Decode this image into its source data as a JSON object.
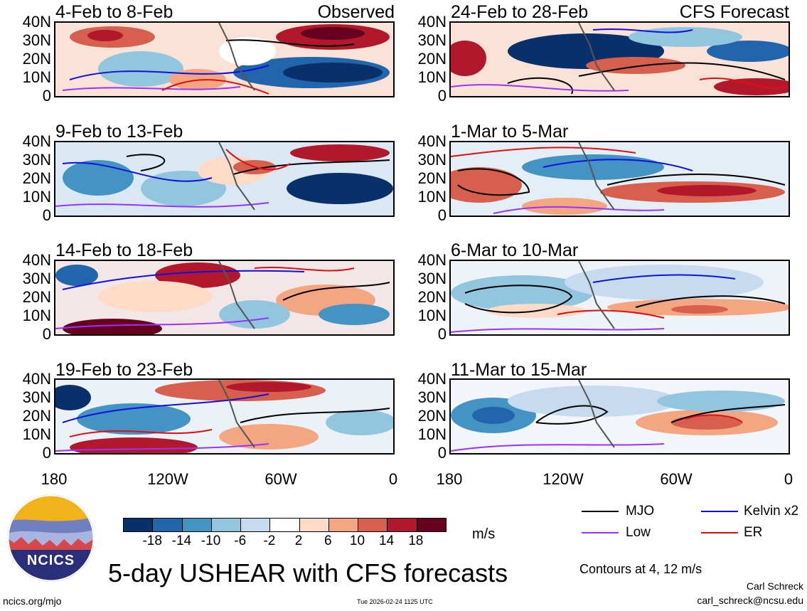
{
  "panels": [
    {
      "title": "4-Feb to 8-Feb",
      "tag": "Observed"
    },
    {
      "title": "24-Feb to 28-Feb",
      "tag": "CFS Forecast"
    },
    {
      "title": "9-Feb to 13-Feb",
      "tag": ""
    },
    {
      "title": "1-Mar to 5-Mar",
      "tag": ""
    },
    {
      "title": "14-Feb to 18-Feb",
      "tag": ""
    },
    {
      "title": "6-Mar to 10-Mar",
      "tag": ""
    },
    {
      "title": "19-Feb to 23-Feb",
      "tag": ""
    },
    {
      "title": "11-Mar to 15-Mar",
      "tag": ""
    }
  ],
  "y_ticks": [
    "40N",
    "30N",
    "20N",
    "10N",
    "0"
  ],
  "x_ticks": [
    "180",
    "120W",
    "60W",
    "0"
  ],
  "colorbar": {
    "colors": [
      "#08306b",
      "#2166ac",
      "#4393c3",
      "#92c5de",
      "#c6dbef",
      "#ffffff",
      "#fddbc7",
      "#f4a582",
      "#d6604d",
      "#b2182b",
      "#67001f"
    ],
    "labels": [
      "-18",
      "-14",
      "-10",
      "-6",
      "-2",
      "2",
      "6",
      "10",
      "14",
      "18"
    ],
    "unit": "m/s"
  },
  "legend": {
    "mjo": {
      "label": "MJO",
      "color": "#000000"
    },
    "kelvin": {
      "label": "Kelvin x2",
      "color": "#1010e0"
    },
    "low": {
      "label": "Low",
      "color": "#9933ff"
    },
    "er": {
      "label": "ER",
      "color": "#e01010"
    },
    "contours": "Contours at 4, 12 m/s"
  },
  "logo": {
    "text": "NCICS"
  },
  "main_title": "5-day USHEAR with CFS forecasts",
  "footer": {
    "url": "ncics.org/mjo",
    "timestamp": "Tue 2026-02-24 1125 UTC",
    "author": "Carl Schreck",
    "email": "carl_schreck@ncsu.edu"
  }
}
